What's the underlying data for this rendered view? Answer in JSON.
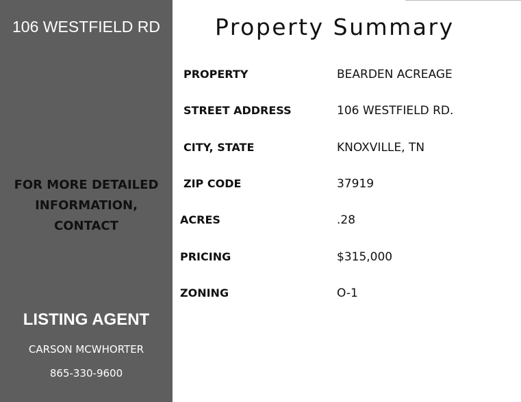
{
  "sidebar": {
    "address": "106 WESTFIELD RD",
    "contact_note": "FOR MORE DETAILED INFORMATION, CONTACT",
    "agent_heading": "LISTING AGENT",
    "agent_name": "CARSON MCWHORTER",
    "agent_phone": "865-330-9600"
  },
  "summary": {
    "title": "Property Summary",
    "rows": [
      {
        "label": "PROPERTY",
        "value": "BEARDEN ACREAGE"
      },
      {
        "label": "STREET ADDRESS",
        "value": "106 WESTFIELD RD."
      },
      {
        "label": "CITY, STATE",
        "value": "KNOXVILLE, TN"
      },
      {
        "label": "ZIP CODE",
        "value": "37919"
      },
      {
        "label": "ACRES",
        "value": ".28"
      },
      {
        "label": "PRICING",
        "value": "$315,000"
      },
      {
        "label": "ZONING",
        "value": "O-1"
      }
    ]
  }
}
